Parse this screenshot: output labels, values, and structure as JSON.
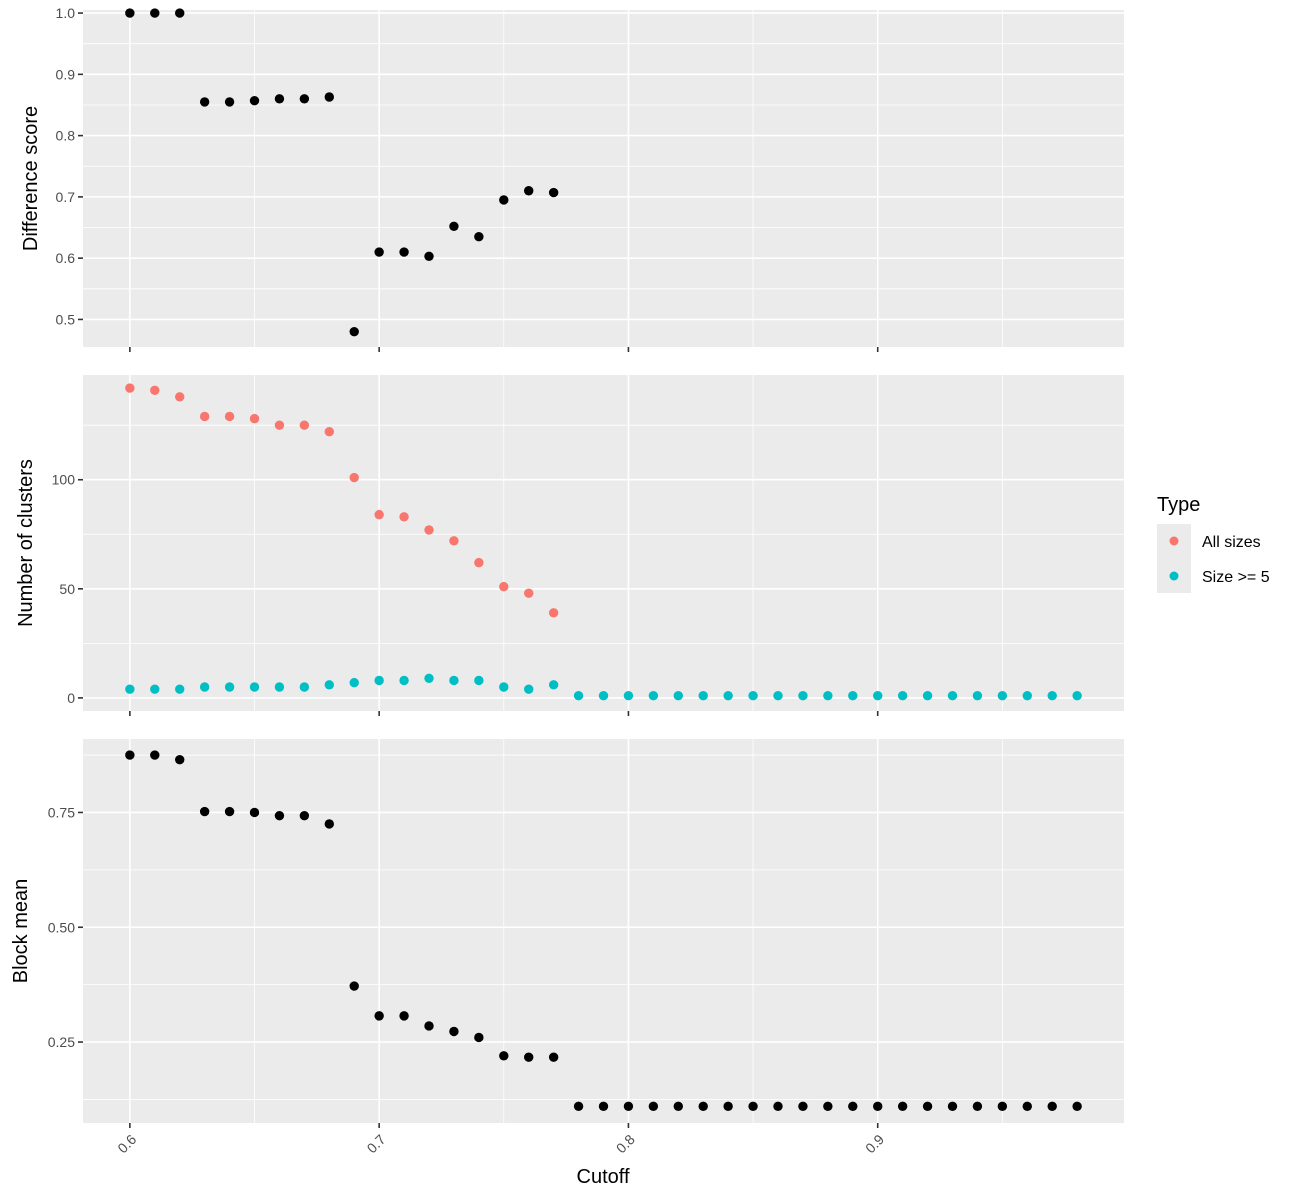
{
  "chart_data": [
    {
      "type": "scatter",
      "ylabel": "Difference score",
      "xlabel": "",
      "ylim": [
        0.455,
        1.005
      ],
      "yticks": [
        "0.5",
        "0.6",
        "0.7",
        "0.8",
        "0.9",
        "1.0"
      ],
      "grid": true,
      "series": [
        {
          "color": "#000000",
          "x": [
            0.6,
            0.61,
            0.62,
            0.63,
            0.64,
            0.65,
            0.66,
            0.67,
            0.68,
            0.69,
            0.7,
            0.71,
            0.72,
            0.73,
            0.74,
            0.75,
            0.76,
            0.77
          ],
          "y": [
            1.0,
            1.0,
            1.0,
            0.855,
            0.855,
            0.857,
            0.86,
            0.86,
            0.863,
            0.48,
            0.61,
            0.61,
            0.603,
            0.652,
            0.635,
            0.695,
            0.71,
            0.707
          ]
        }
      ]
    },
    {
      "type": "scatter",
      "ylabel": "Number of clusters",
      "xlabel": "",
      "ylim": [
        -6,
        148
      ],
      "yticks": [
        "0",
        "50",
        "100"
      ],
      "grid": true,
      "legend": {
        "title": "Type",
        "placement": "right",
        "entries": [
          "All sizes",
          "Size >= 5"
        ]
      },
      "series": [
        {
          "name": "All sizes",
          "color": "#F8766D",
          "x": [
            0.6,
            0.61,
            0.62,
            0.63,
            0.64,
            0.65,
            0.66,
            0.67,
            0.68,
            0.69,
            0.7,
            0.71,
            0.72,
            0.73,
            0.74,
            0.75,
            0.76,
            0.77
          ],
          "y": [
            142,
            141,
            138,
            129,
            129,
            128,
            125,
            125,
            122,
            101,
            84,
            83,
            77,
            72,
            62,
            51,
            48,
            39
          ]
        },
        {
          "name": "Size >= 5",
          "color": "#00BFC4",
          "x": [
            0.6,
            0.61,
            0.62,
            0.63,
            0.64,
            0.65,
            0.66,
            0.67,
            0.68,
            0.69,
            0.7,
            0.71,
            0.72,
            0.73,
            0.74,
            0.75,
            0.76,
            0.77,
            0.78,
            0.79,
            0.8,
            0.81,
            0.82,
            0.83,
            0.84,
            0.85,
            0.86,
            0.87,
            0.88,
            0.89,
            0.9,
            0.91,
            0.92,
            0.93,
            0.94,
            0.95,
            0.96,
            0.97,
            0.98
          ],
          "y": [
            4,
            4,
            4,
            5,
            5,
            5,
            5,
            5,
            6,
            7,
            8,
            8,
            9,
            8,
            8,
            5,
            4,
            6,
            1,
            1,
            1,
            1,
            1,
            1,
            1,
            1,
            1,
            1,
            1,
            1,
            1,
            1,
            1,
            1,
            1,
            1,
            1,
            1,
            1
          ]
        }
      ]
    },
    {
      "type": "scatter",
      "ylabel": "Block mean",
      "xlabel": "Cutoff",
      "ylim": [
        0.0737,
        0.91
      ],
      "yticks": [
        "0.25",
        "0.50",
        "0.75"
      ],
      "xlim": [
        0.5812,
        0.9988
      ],
      "xticks": [
        "0.6",
        "0.7",
        "0.8",
        "0.9"
      ],
      "grid": true,
      "series": [
        {
          "color": "#000000",
          "x": [
            0.6,
            0.61,
            0.62,
            0.63,
            0.64,
            0.65,
            0.66,
            0.67,
            0.68,
            0.69,
            0.7,
            0.71,
            0.72,
            0.73,
            0.74,
            0.75,
            0.76,
            0.77,
            0.78,
            0.79,
            0.8,
            0.81,
            0.82,
            0.83,
            0.84,
            0.85,
            0.86,
            0.87,
            0.88,
            0.89,
            0.9,
            0.91,
            0.92,
            0.93,
            0.94,
            0.95,
            0.96,
            0.97,
            0.98
          ],
          "y": [
            0.875,
            0.875,
            0.865,
            0.752,
            0.752,
            0.75,
            0.743,
            0.743,
            0.725,
            0.372,
            0.307,
            0.307,
            0.285,
            0.273,
            0.26,
            0.22,
            0.217,
            0.217,
            0.11,
            0.11,
            0.11,
            0.11,
            0.11,
            0.11,
            0.11,
            0.11,
            0.11,
            0.11,
            0.11,
            0.11,
            0.11,
            0.11,
            0.11,
            0.11,
            0.11,
            0.11,
            0.11,
            0.11,
            0.11
          ]
        }
      ]
    }
  ]
}
